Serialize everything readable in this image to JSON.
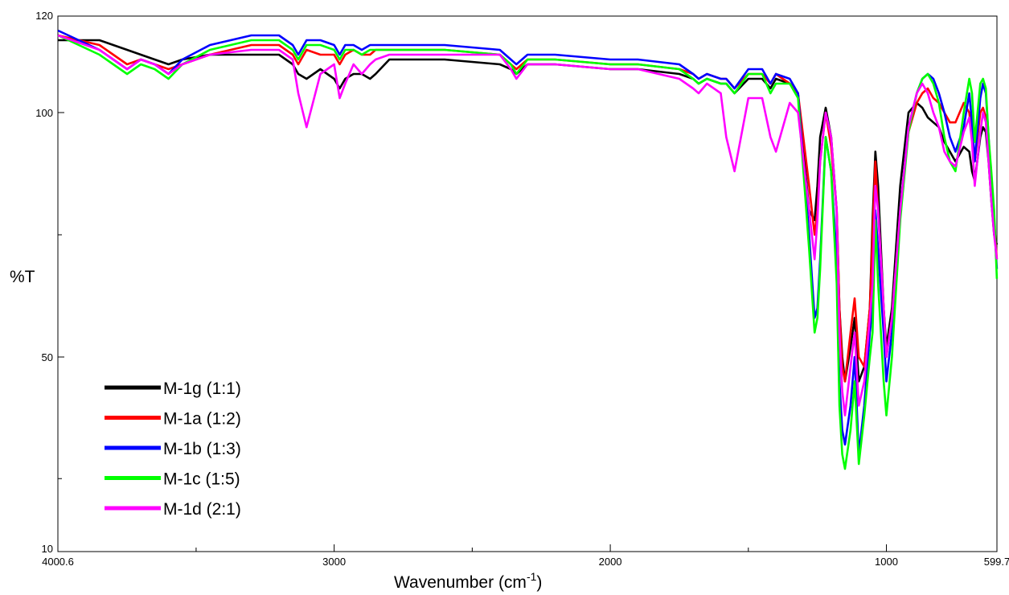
{
  "chart_data": {
    "type": "line",
    "title": "",
    "xlabel": "Wavenumber (cm",
    "xlabel_sup": "-1",
    "xlabel_end": ")",
    "ylabel": "%T",
    "xlim": [
      4000.6,
      599.7
    ],
    "x_reversed": true,
    "ylim": [
      10,
      120
    ],
    "y_tick_values": [
      10,
      50,
      100,
      120
    ],
    "x_tick_labels": [
      {
        "value": 4000.6,
        "label": "4000.6"
      },
      {
        "value": 3000,
        "label": "3000"
      },
      {
        "value": 2000,
        "label": "2000"
      },
      {
        "value": 1000,
        "label": "1000"
      },
      {
        "value": 599.7,
        "label": "599.7"
      }
    ],
    "x_minor_ticks": [
      3500,
      2500,
      1500
    ],
    "y_tick_labels": [
      {
        "value": 10,
        "label": "10"
      },
      {
        "value": 50,
        "label": "50"
      },
      {
        "value": 100,
        "label": "100"
      },
      {
        "value": 120,
        "label": "120"
      }
    ],
    "y_minor_ticks": [
      25,
      75
    ],
    "grid": false,
    "legend_position": "bottom-left",
    "series": [
      {
        "name": "M-1g (1:1)",
        "color": "#000000",
        "x": [
          4000,
          3850,
          3800,
          3750,
          3700,
          3650,
          3600,
          3550,
          3450,
          3300,
          3200,
          3150,
          3130,
          3100,
          3050,
          3000,
          2980,
          2960,
          2930,
          2900,
          2870,
          2850,
          2800,
          2600,
          2400,
          2360,
          2340,
          2300,
          2200,
          2000,
          1900,
          1750,
          1700,
          1680,
          1650,
          1600,
          1580,
          1550,
          1500,
          1450,
          1420,
          1400,
          1350,
          1320,
          1280,
          1260,
          1250,
          1240,
          1220,
          1200,
          1180,
          1170,
          1160,
          1150,
          1130,
          1115,
          1100,
          1080,
          1060,
          1050,
          1040,
          1030,
          1010,
          1000,
          980,
          950,
          920,
          890,
          870,
          850,
          830,
          810,
          790,
          770,
          750,
          720,
          700,
          690,
          680,
          660,
          650,
          640,
          630,
          620,
          610,
          600
        ],
        "y": [
          115,
          115,
          114,
          113,
          112,
          111,
          110,
          111,
          112,
          112,
          112,
          110,
          108,
          107,
          109,
          107,
          105,
          107,
          108,
          108,
          107,
          108,
          111,
          111,
          110,
          109,
          108,
          110,
          110,
          109,
          109,
          108,
          107,
          106,
          107,
          106,
          106,
          104,
          107,
          107,
          105,
          107,
          106,
          104,
          80,
          78,
          85,
          95,
          101,
          95,
          80,
          60,
          50,
          45,
          52,
          58,
          45,
          48,
          60,
          78,
          92,
          85,
          60,
          52,
          60,
          85,
          100,
          102,
          101,
          99,
          98,
          97,
          94,
          92,
          90,
          93,
          92,
          88,
          86,
          95,
          97,
          96,
          90,
          82,
          75,
          73
        ]
      },
      {
        "name": "M-1a (1:2)",
        "color": "#ff0000",
        "x": [
          4000,
          3850,
          3800,
          3750,
          3700,
          3650,
          3600,
          3550,
          3450,
          3300,
          3200,
          3150,
          3130,
          3100,
          3050,
          3000,
          2980,
          2960,
          2930,
          2900,
          2870,
          2850,
          2800,
          2600,
          2400,
          2360,
          2340,
          2300,
          2200,
          2000,
          1900,
          1750,
          1700,
          1680,
          1650,
          1600,
          1580,
          1550,
          1500,
          1450,
          1420,
          1400,
          1350,
          1320,
          1280,
          1260,
          1250,
          1240,
          1220,
          1200,
          1180,
          1170,
          1160,
          1150,
          1130,
          1115,
          1100,
          1080,
          1060,
          1050,
          1040,
          1030,
          1010,
          1000,
          980,
          950,
          920,
          890,
          870,
          850,
          830,
          810,
          790,
          770,
          750,
          720,
          700,
          690,
          680,
          660,
          650,
          640,
          630,
          620,
          610,
          600
        ],
        "y": [
          116,
          114,
          112,
          110,
          111,
          110,
          109,
          110,
          112,
          114,
          114,
          112,
          110,
          113,
          112,
          112,
          110,
          112,
          113,
          112,
          112,
          113,
          113,
          113,
          112,
          110,
          109,
          111,
          111,
          110,
          110,
          109,
          108,
          107,
          108,
          107,
          107,
          105,
          108,
          108,
          106,
          108,
          106,
          104,
          85,
          75,
          80,
          90,
          100,
          93,
          80,
          60,
          48,
          45,
          55,
          62,
          50,
          48,
          60,
          75,
          90,
          80,
          60,
          50,
          58,
          80,
          96,
          102,
          104,
          105,
          103,
          102,
          100,
          98,
          98,
          102,
          100,
          95,
          90,
          100,
          101,
          99,
          92,
          85,
          78,
          70
        ]
      },
      {
        "name": "M-1b (1:3)",
        "color": "#0000ff",
        "x": [
          4000,
          3850,
          3800,
          3750,
          3700,
          3650,
          3600,
          3550,
          3450,
          3300,
          3200,
          3150,
          3130,
          3100,
          3050,
          3000,
          2980,
          2960,
          2930,
          2900,
          2870,
          2850,
          2800,
          2600,
          2400,
          2360,
          2340,
          2300,
          2200,
          2000,
          1900,
          1750,
          1700,
          1680,
          1650,
          1600,
          1580,
          1550,
          1500,
          1450,
          1420,
          1400,
          1350,
          1320,
          1280,
          1260,
          1250,
          1240,
          1220,
          1200,
          1180,
          1170,
          1160,
          1150,
          1130,
          1115,
          1100,
          1080,
          1060,
          1050,
          1040,
          1030,
          1010,
          1000,
          980,
          950,
          920,
          890,
          870,
          850,
          830,
          810,
          790,
          770,
          750,
          720,
          700,
          690,
          680,
          660,
          650,
          640,
          630,
          620,
          610,
          600
        ],
        "y": [
          117,
          113,
          111,
          109,
          111,
          110,
          108,
          111,
          114,
          116,
          116,
          114,
          112,
          115,
          115,
          114,
          112,
          114,
          114,
          113,
          114,
          114,
          114,
          114,
          113,
          111,
          110,
          112,
          112,
          111,
          111,
          110,
          108,
          107,
          108,
          107,
          107,
          105,
          109,
          109,
          106,
          108,
          107,
          104,
          75,
          58,
          60,
          70,
          95,
          88,
          70,
          45,
          35,
          32,
          40,
          50,
          30,
          40,
          55,
          60,
          80,
          72,
          55,
          45,
          55,
          80,
          97,
          104,
          107,
          108,
          107,
          104,
          100,
          95,
          92,
          97,
          104,
          98,
          90,
          103,
          106,
          104,
          95,
          86,
          78,
          68
        ]
      },
      {
        "name": "M-1c (1:5)",
        "color": "#00ff00",
        "x": [
          4000,
          3850,
          3800,
          3750,
          3700,
          3650,
          3600,
          3550,
          3450,
          3300,
          3200,
          3150,
          3130,
          3100,
          3050,
          3000,
          2980,
          2960,
          2930,
          2900,
          2870,
          2850,
          2800,
          2600,
          2400,
          2360,
          2340,
          2300,
          2200,
          2000,
          1900,
          1750,
          1700,
          1680,
          1650,
          1600,
          1580,
          1550,
          1500,
          1450,
          1420,
          1400,
          1350,
          1320,
          1280,
          1260,
          1250,
          1240,
          1220,
          1200,
          1180,
          1170,
          1160,
          1150,
          1130,
          1115,
          1100,
          1080,
          1060,
          1050,
          1040,
          1030,
          1010,
          1000,
          980,
          950,
          920,
          890,
          870,
          850,
          830,
          810,
          790,
          770,
          750,
          720,
          700,
          690,
          680,
          660,
          650,
          640,
          630,
          620,
          610,
          600
        ],
        "y": [
          116,
          112,
          110,
          108,
          110,
          109,
          107,
          110,
          113,
          115,
          115,
          113,
          111,
          114,
          114,
          113,
          111,
          113,
          113,
          112,
          113,
          113,
          113,
          113,
          112,
          110,
          108,
          111,
          111,
          110,
          110,
          109,
          107,
          106,
          107,
          106,
          106,
          104,
          108,
          108,
          104,
          106,
          106,
          103,
          72,
          55,
          58,
          68,
          95,
          88,
          65,
          40,
          30,
          27,
          35,
          45,
          28,
          38,
          50,
          55,
          78,
          65,
          45,
          38,
          50,
          78,
          96,
          104,
          107,
          108,
          106,
          102,
          95,
          90,
          88,
          100,
          107,
          104,
          94,
          106,
          107,
          105,
          95,
          88,
          80,
          66
        ]
      },
      {
        "name": "M-1d (2:1)",
        "color": "#ff00ff",
        "x": [
          4000,
          3850,
          3800,
          3750,
          3700,
          3650,
          3600,
          3550,
          3450,
          3300,
          3200,
          3150,
          3130,
          3100,
          3050,
          3000,
          2980,
          2960,
          2930,
          2900,
          2870,
          2850,
          2800,
          2600,
          2400,
          2360,
          2340,
          2300,
          2200,
          2000,
          1900,
          1750,
          1700,
          1680,
          1650,
          1600,
          1580,
          1550,
          1500,
          1450,
          1420,
          1400,
          1350,
          1320,
          1280,
          1260,
          1250,
          1240,
          1220,
          1200,
          1180,
          1170,
          1160,
          1150,
          1130,
          1115,
          1100,
          1080,
          1060,
          1050,
          1040,
          1030,
          1010,
          1000,
          980,
          950,
          920,
          890,
          870,
          850,
          830,
          810,
          790,
          770,
          750,
          720,
          700,
          690,
          680,
          660,
          650,
          640,
          630,
          620,
          610,
          600
        ],
        "y": [
          116,
          113,
          111,
          109,
          111,
          110,
          108,
          110,
          112,
          113,
          113,
          111,
          104,
          97,
          108,
          110,
          103,
          106,
          110,
          108,
          110,
          111,
          112,
          112,
          112,
          109,
          107,
          110,
          110,
          109,
          109,
          107,
          105,
          104,
          106,
          104,
          95,
          88,
          103,
          103,
          95,
          92,
          102,
          100,
          80,
          70,
          78,
          90,
          100,
          95,
          80,
          55,
          43,
          38,
          48,
          55,
          40,
          45,
          58,
          65,
          85,
          80,
          60,
          50,
          58,
          80,
          97,
          104,
          106,
          104,
          100,
          97,
          92,
          90,
          89,
          96,
          99,
          94,
          85,
          96,
          100,
          98,
          90,
          82,
          75,
          70
        ]
      }
    ]
  }
}
